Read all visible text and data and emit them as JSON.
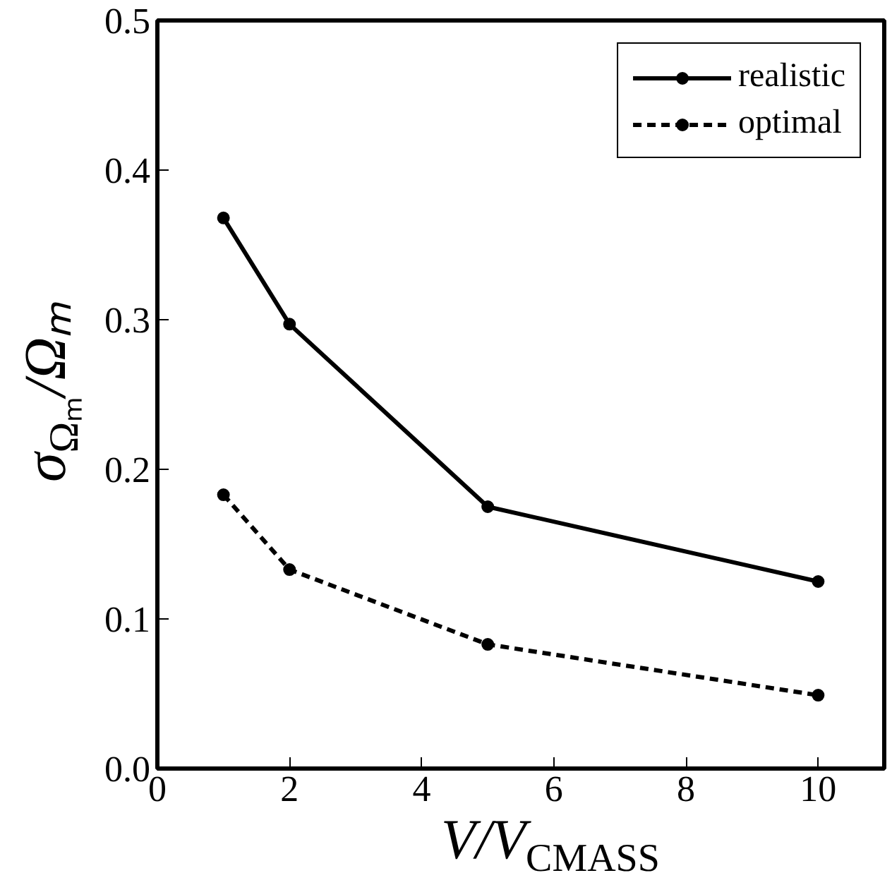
{
  "chart_data": {
    "type": "line",
    "xlabel": "V/V$_{CMASS}$",
    "ylabel": "σ$_{Ωₘ}$/Ωₘ",
    "x": [
      1,
      2,
      5,
      10
    ],
    "series": [
      {
        "name": "realistic",
        "color": "#000000",
        "line_style": "solid",
        "values": [
          0.368,
          0.297,
          0.175,
          0.125
        ]
      },
      {
        "name": "optimal",
        "color": "#000000",
        "line_style": "dashed",
        "values": [
          0.183,
          0.133,
          0.083,
          0.049
        ]
      }
    ],
    "xlim": [
      0,
      11
    ],
    "ylim": [
      0,
      0.5
    ],
    "xticks": [
      0,
      2,
      4,
      6,
      8,
      10
    ],
    "yticks": [
      {
        "value": 0,
        "label": "0.0"
      },
      0.1,
      0.2,
      0.3,
      0.4,
      0.5
    ],
    "marker": "circle",
    "grid": false,
    "legend": "top right"
  }
}
